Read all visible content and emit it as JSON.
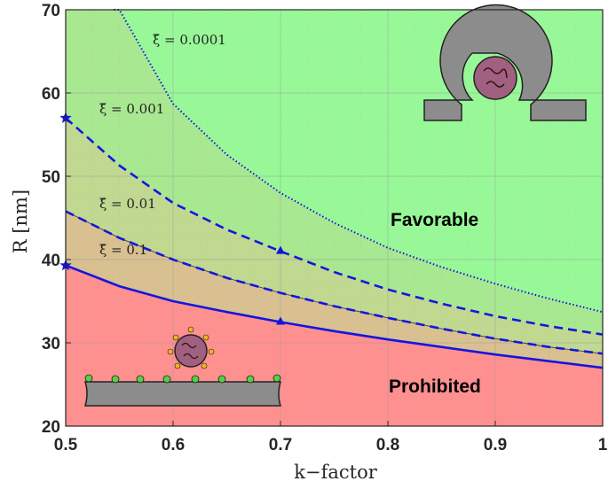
{
  "chart_data": {
    "type": "line",
    "title": "",
    "xlabel": "k−factor",
    "ylabel": "R [nm]",
    "xlim": [
      0.5,
      1.0
    ],
    "ylim": [
      20,
      70
    ],
    "xticks": [
      "0.5",
      "0.6",
      "0.7",
      "0.8",
      "0.9",
      "1"
    ],
    "yticks": [
      "20",
      "30",
      "40",
      "50",
      "60",
      "70"
    ],
    "grid": true,
    "x": [
      0.5,
      0.55,
      0.6,
      0.65,
      0.7,
      0.75,
      0.8,
      0.85,
      0.9,
      0.95,
      1.0
    ],
    "series": [
      {
        "name": "ξ̃ = 0.0001",
        "style": "dotted",
        "label": "ξ̃ = 0.0001",
        "values": [
          null,
          70.0,
          58.7,
          52.6,
          48.0,
          44.4,
          41.4,
          39.1,
          37.1,
          35.3,
          33.7
        ]
      },
      {
        "name": "ξ̃ = 0.001",
        "style": "dashed",
        "label": "ξ̃ = 0.001",
        "values": [
          57.0,
          51.3,
          46.8,
          43.6,
          41.0,
          38.5,
          36.4,
          34.7,
          33.2,
          32.0,
          31.0
        ]
      },
      {
        "name": "ξ̃ = 0.01",
        "style": "dashed",
        "label": "ξ̃ = 0.01",
        "values": [
          45.8,
          42.6,
          40.0,
          37.8,
          36.0,
          34.4,
          33.0,
          31.7,
          30.5,
          29.5,
          28.7
        ]
      },
      {
        "name": "ξ̃ = 0.1",
        "style": "solid",
        "label": "ξ̃ = 0.1",
        "values": [
          39.3,
          36.8,
          35.0,
          33.7,
          32.5,
          31.4,
          30.4,
          29.5,
          28.6,
          27.8,
          27.0
        ]
      }
    ],
    "markers": [
      {
        "shape": "star",
        "x": 0.5,
        "y": 57.0
      },
      {
        "shape": "star",
        "x": 0.5,
        "y": 39.3
      },
      {
        "shape": "triangle",
        "x": 0.7,
        "y": 41.0
      },
      {
        "shape": "triangle",
        "x": 0.7,
        "y": 32.5
      }
    ],
    "annotations": [
      "Favorable",
      "Prohibited"
    ],
    "colors": {
      "line": "#1515e0",
      "favorable": "#98f898",
      "band1": "#a8e890",
      "band2": "#c0d890",
      "band3": "#d8c090",
      "prohibited": "#ff9090"
    }
  }
}
